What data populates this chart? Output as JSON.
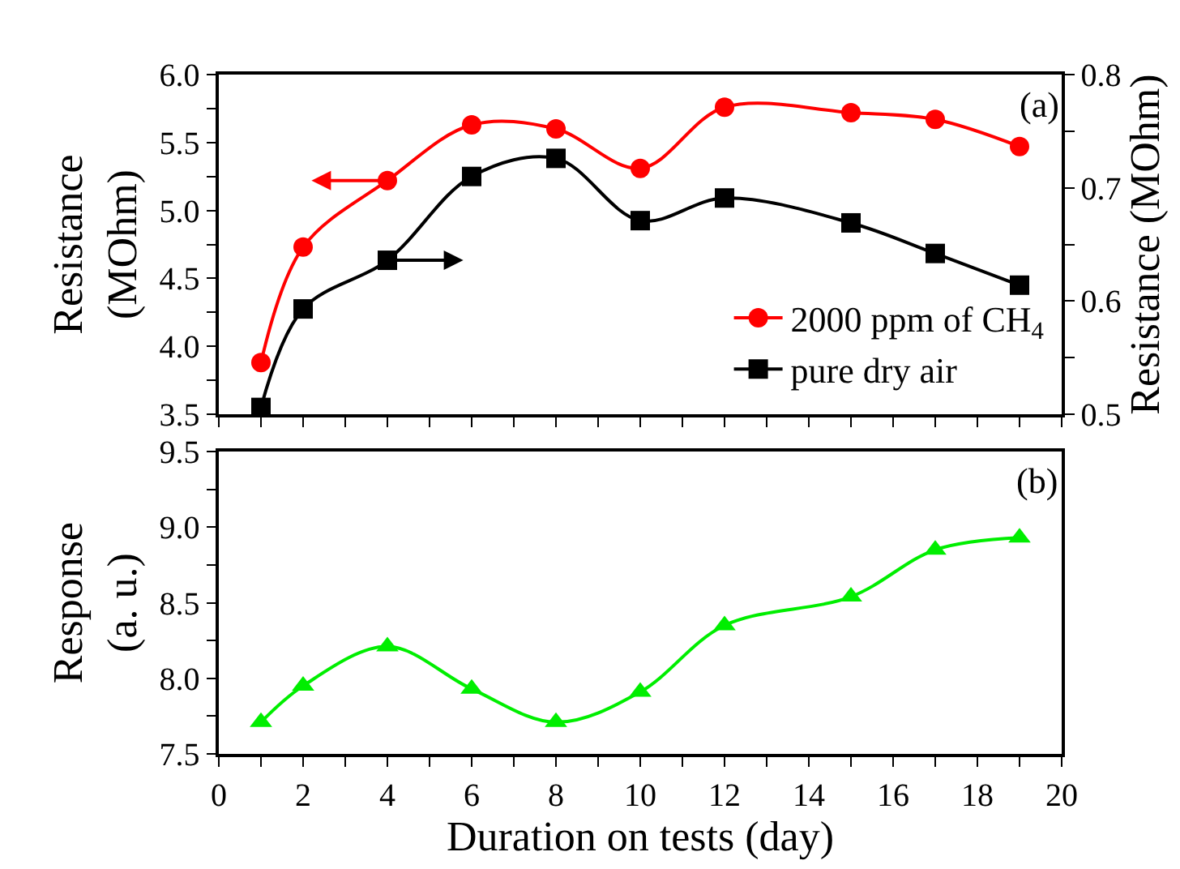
{
  "chart_data": [
    {
      "type": "line",
      "x": [
        1,
        2,
        4,
        6,
        8,
        10,
        12,
        15,
        17,
        19
      ],
      "ylabel": "Resistance (MOhm)",
      "y2label": "Resistance (MOhm)",
      "annotations": [
        "(a)"
      ],
      "series": [
        {
          "name": "2000 ppm of CH$_{4}$",
          "color": "#ff0000",
          "marker": "circle",
          "values": [
            3.88,
            4.73,
            5.22,
            5.63,
            5.6,
            5.31,
            5.76,
            5.72,
            5.67,
            5.47
          ]
        },
        {
          "name": "pure dry air",
          "color": "#000000",
          "marker": "square",
          "axis": "y2",
          "values": [
            0.506,
            0.593,
            0.636,
            0.71,
            0.726,
            0.671,
            0.691,
            0.669,
            0.642,
            0.614
          ]
        }
      ],
      "xlim": [
        0,
        20
      ],
      "xticks": [
        0,
        {
          "value": 1,
          "label": null
        },
        2,
        {
          "value": 3,
          "label": null
        },
        4,
        {
          "value": 5,
          "label": null
        },
        6,
        {
          "value": 7,
          "label": null
        },
        8,
        {
          "value": 9,
          "label": null
        },
        10,
        {
          "value": 11,
          "label": null
        },
        12,
        {
          "value": 13,
          "label": null
        },
        14,
        {
          "value": 15,
          "label": null
        },
        16,
        {
          "value": 17,
          "label": null
        },
        18,
        {
          "value": 19,
          "label": null
        },
        20
      ],
      "ylim": [
        3.5,
        6.0
      ],
      "yticks": [
        3.5,
        {
          "value": 3.75,
          "label": null
        },
        {
          "value": 4,
          "label": "4.0"
        },
        {
          "value": 4.25,
          "label": null
        },
        4.5,
        {
          "value": 4.75,
          "label": null
        },
        {
          "value": 5,
          "label": "5.0"
        },
        {
          "value": 5.25,
          "label": null
        },
        5.5,
        {
          "value": 5.75,
          "label": null
        },
        {
          "value": 6,
          "label": "6.0"
        }
      ],
      "y2lim": [
        0.5,
        0.8
      ],
      "y2ticks": [
        0.5,
        {
          "value": 0.55,
          "label": null
        },
        0.6,
        {
          "value": 0.65,
          "label": null
        },
        0.7,
        {
          "value": 0.75,
          "label": null
        },
        0.8
      ],
      "tick_labels": "y",
      "legend": "bottom right"
    },
    {
      "type": "line",
      "x": [
        1,
        2,
        4,
        6,
        8,
        10,
        12,
        15,
        17,
        19
      ],
      "xlabel": "Duration on tests (day)",
      "ylabel": "Response (a. u.)",
      "annotations": [
        "(b)"
      ],
      "series": [
        {
          "color": "#00ee00",
          "marker": "triangle",
          "values": [
            7.71,
            7.95,
            8.21,
            7.93,
            7.71,
            7.91,
            8.35,
            8.54,
            8.85,
            8.93
          ]
        }
      ],
      "xlim": [
        0,
        20
      ],
      "xticks": [
        0,
        {
          "value": 1,
          "label": null
        },
        2,
        {
          "value": 3,
          "label": null
        },
        4,
        {
          "value": 5,
          "label": null
        },
        6,
        {
          "value": 7,
          "label": null
        },
        8,
        {
          "value": 9,
          "label": null
        },
        10,
        {
          "value": 11,
          "label": null
        },
        12,
        {
          "value": 13,
          "label": null
        },
        14,
        {
          "value": 15,
          "label": null
        },
        16,
        {
          "value": 17,
          "label": null
        },
        18,
        {
          "value": 19,
          "label": null
        },
        20
      ],
      "ylim": [
        7.5,
        9.5
      ],
      "yticks": [
        7.5,
        {
          "value": 7.75,
          "label": null
        },
        {
          "value": 8,
          "label": "8.0"
        },
        {
          "value": 8.25,
          "label": null
        },
        8.5,
        {
          "value": 8.75,
          "label": null
        },
        {
          "value": 9,
          "label": "9.0"
        },
        {
          "value": 9.25,
          "label": null
        },
        9.5
      ],
      "legend": false
    }
  ]
}
